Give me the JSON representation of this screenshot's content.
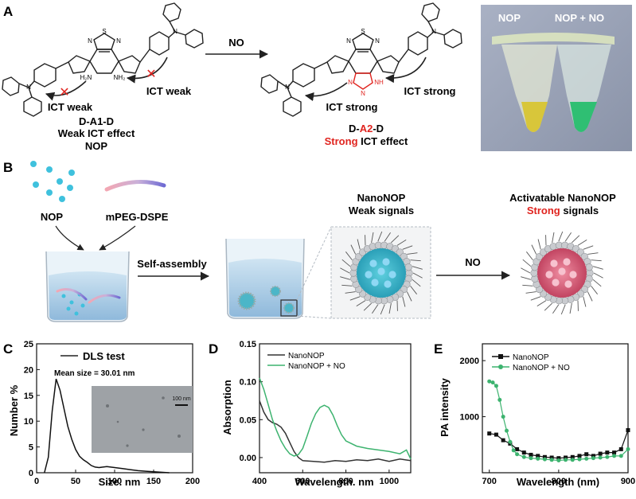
{
  "colors": {
    "red": "#e0241f",
    "green": "#3db36f",
    "dark": "#333333",
    "cyan": "#3fc1dd",
    "purple": "#7c6fd0",
    "pink": "#e77a8a",
    "shellGray": "#c9cbcf"
  },
  "panelA": {
    "label": "A",
    "arrow_label": "NO",
    "left": {
      "ict_left": "ICT weak",
      "ict_right": "ICT weak",
      "name1": "D-A1-D",
      "name2": "Weak ICT effect",
      "name3": "NOP",
      "amine1": "H₂N",
      "amine2": "NH₂"
    },
    "right": {
      "ict_left": "ICT strong",
      "ict_right": "ICT strong",
      "name1_pre": "D-",
      "name1_red": "A2",
      "name1_post": "-D",
      "name2_red": "Strong",
      "name2_post": " ICT effect",
      "triazole_n": "N",
      "triazole_nh": "NH"
    },
    "thiadiazole": {
      "s": "S",
      "n": "N"
    },
    "amine_n": "N",
    "photo": {
      "tube1": "NOP",
      "tube2": "NOP + NO"
    }
  },
  "panelB": {
    "label": "B",
    "nop": "NOP",
    "mpeg": "mPEG-DSPE",
    "selfassembly": "Self-assembly",
    "nano_title1": "NanoNOP",
    "nano_title2": "Weak signals",
    "arrow_label": "NO",
    "act_title1": "Activatable  NanoNOP",
    "act_title2_red": "Strong",
    "act_title2_post": " signals"
  },
  "panelC": {
    "label": "C",
    "legend": "DLS test",
    "mean": "Mean size = 30.01 nm",
    "scalebar": "100 nm",
    "xlabel": "Size. nm",
    "ylabel": "Number %"
  },
  "panelD": {
    "label": "D",
    "legend1": "NanoNOP",
    "legend2": "NanoNOP + NO",
    "xlabel": "Wavelength. nm",
    "ylabel": "Absorption"
  },
  "panelE": {
    "label": "E",
    "legend1": "NanoNOP",
    "legend2": "NanoNOP + NO",
    "xlabel": "Wavelength (nm)",
    "ylabel": "PA intensity"
  },
  "chart_data": [
    {
      "type": "line",
      "title": "DLS test",
      "xlabel": "Size. nm",
      "ylabel": "Number %",
      "xlim": [
        0,
        200
      ],
      "ylim": [
        0,
        25
      ],
      "xticks": [
        0,
        50,
        100,
        150,
        200
      ],
      "yticks": [
        0,
        5,
        10,
        15,
        20,
        25
      ],
      "series": [
        {
          "name": "DLS test",
          "x": [
            10,
            15,
            20,
            25,
            30,
            35,
            40,
            45,
            50,
            55,
            60,
            65,
            70,
            75,
            80,
            85,
            90,
            95,
            100,
            110,
            120,
            130,
            140,
            150,
            160,
            170
          ],
          "y": [
            0,
            3,
            12,
            18.2,
            16,
            12.5,
            9,
            6.5,
            4.5,
            3.2,
            2.5,
            2,
            1.4,
            1.1,
            1,
            1.1,
            1.2,
            1.1,
            1,
            0.8,
            0.6,
            0.4,
            0.3,
            0.2,
            0.1,
            0
          ]
        }
      ],
      "annotation": "Mean size = 30.01 nm"
    },
    {
      "type": "line",
      "xlabel": "Wavelength. nm",
      "ylabel": "Absorption",
      "xlim": [
        400,
        1100
      ],
      "ylim": [
        -0.02,
        0.15
      ],
      "xticks": [
        400,
        600,
        800,
        1000
      ],
      "xticklabels": [
        "400",
        "600",
        "800",
        "1000"
      ],
      "yticks": [
        0.0,
        0.05,
        0.1,
        0.15
      ],
      "yticklabels": [
        "0.00",
        "0.05",
        "0.10",
        "0.15"
      ],
      "series": [
        {
          "name": "NanoNOP",
          "x": [
            400,
            420,
            440,
            460,
            480,
            500,
            520,
            540,
            560,
            580,
            600,
            650,
            700,
            750,
            800,
            850,
            900,
            950,
            1000,
            1050,
            1100
          ],
          "y": [
            0.075,
            0.06,
            0.05,
            0.046,
            0.044,
            0.04,
            0.032,
            0.02,
            0.008,
            0.0,
            -0.004,
            -0.005,
            -0.006,
            -0.004,
            -0.005,
            -0.003,
            -0.004,
            -0.002,
            -0.005,
            -0.002,
            -0.004
          ]
        },
        {
          "name": "NanoNOP + NO",
          "x": [
            400,
            420,
            440,
            460,
            480,
            500,
            520,
            540,
            560,
            580,
            600,
            620,
            640,
            660,
            680,
            700,
            720,
            740,
            760,
            780,
            800,
            850,
            900,
            950,
            1000,
            1050,
            1080,
            1100
          ],
          "y": [
            0.105,
            0.09,
            0.07,
            0.05,
            0.035,
            0.022,
            0.012,
            0.005,
            0.002,
            0.004,
            0.012,
            0.028,
            0.045,
            0.058,
            0.066,
            0.069,
            0.066,
            0.056,
            0.042,
            0.03,
            0.022,
            0.015,
            0.012,
            0.01,
            0.008,
            0.005,
            0.01,
            -0.002
          ]
        }
      ]
    },
    {
      "type": "line",
      "xlabel": "Wavelength (nm)",
      "ylabel": "PA intensity",
      "xlim": [
        690,
        900
      ],
      "ylim": [
        0,
        2300
      ],
      "xticks": [
        700,
        800,
        900
      ],
      "yticks": [
        1000,
        2000
      ],
      "series": [
        {
          "name": "NanoNOP",
          "marker": "square",
          "x": [
            700,
            710,
            720,
            730,
            740,
            750,
            760,
            770,
            780,
            790,
            800,
            810,
            820,
            830,
            840,
            850,
            860,
            870,
            880,
            890,
            900
          ],
          "y": [
            700,
            680,
            580,
            520,
            420,
            360,
            320,
            300,
            280,
            270,
            260,
            270,
            280,
            300,
            330,
            300,
            340,
            360,
            360,
            420,
            760
          ]
        },
        {
          "name": "NanoNOP + NO",
          "marker": "circle",
          "x": [
            700,
            705,
            710,
            715,
            720,
            725,
            730,
            735,
            740,
            750,
            760,
            770,
            780,
            790,
            800,
            810,
            820,
            830,
            840,
            850,
            860,
            870,
            880,
            890,
            900
          ],
          "y": [
            1630,
            1610,
            1550,
            1300,
            1000,
            750,
            550,
            400,
            330,
            280,
            260,
            250,
            240,
            230,
            220,
            230,
            230,
            240,
            250,
            260,
            270,
            280,
            300,
            300,
            420
          ]
        }
      ]
    }
  ]
}
